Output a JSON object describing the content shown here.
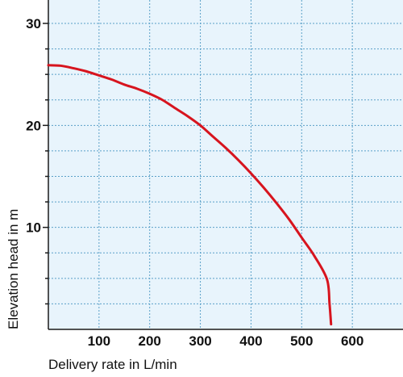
{
  "chart_data": {
    "type": "line",
    "title": "",
    "xlabel": "Delivery rate in L/min",
    "ylabel": "Elevation head in m",
    "xlim": [
      0,
      700
    ],
    "ylim": [
      0,
      30
    ],
    "x_ticks": [
      100,
      200,
      300,
      400,
      500,
      600
    ],
    "x_tick_labels": [
      "100",
      "200",
      "300",
      "400",
      "500",
      "600"
    ],
    "y_ticks": [
      10,
      20,
      30
    ],
    "y_tick_labels": [
      "10",
      "20",
      "30"
    ],
    "y_minor_step": 2.5,
    "grid": true,
    "legend": "none",
    "colors": {
      "plot_background": "#e8f4fc",
      "grid": "#5aa0c8",
      "axis": "#1a1a1a",
      "series": "#d7141e"
    },
    "series": [
      {
        "points": [
          [
            0,
            25.9
          ],
          [
            25,
            25.85
          ],
          [
            50,
            25.6
          ],
          [
            75,
            25.3
          ],
          [
            100,
            24.9
          ],
          [
            125,
            24.5
          ],
          [
            150,
            24.0
          ],
          [
            175,
            23.6
          ],
          [
            200,
            23.1
          ],
          [
            225,
            22.5
          ],
          [
            250,
            21.7
          ],
          [
            275,
            20.9
          ],
          [
            300,
            20.0
          ],
          [
            325,
            18.9
          ],
          [
            350,
            17.8
          ],
          [
            375,
            16.6
          ],
          [
            400,
            15.3
          ],
          [
            425,
            13.9
          ],
          [
            450,
            12.4
          ],
          [
            475,
            10.8
          ],
          [
            500,
            9.0
          ],
          [
            525,
            7.2
          ],
          [
            550,
            4.9
          ],
          [
            555,
            2.5
          ],
          [
            558,
            0.5
          ]
        ]
      }
    ]
  }
}
